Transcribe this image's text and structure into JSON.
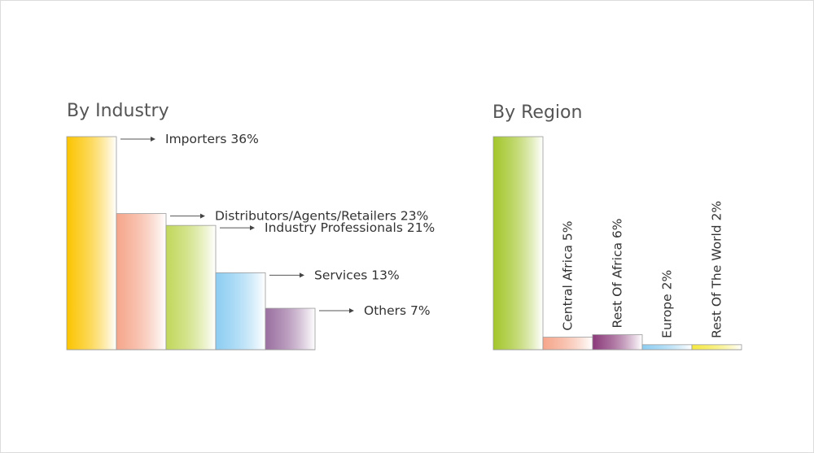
{
  "chart_data": [
    {
      "type": "bar",
      "title": "By Industry",
      "categories": [
        "Importers",
        "Distributors/Agents/Retailers",
        "Industry Professionals",
        "Services",
        "Others"
      ],
      "values": [
        36,
        23,
        21,
        13,
        7
      ],
      "labels": [
        "Importers 36%",
        "Distributors/Agents/Retailers 23%",
        "Industry Professionals  21%",
        "Services  13%",
        "Others 7%"
      ],
      "colors": [
        "#fbc400",
        "#f5a58a",
        "#c0d75a",
        "#8ccdf2",
        "#9a6fa0"
      ],
      "ylim": [
        0,
        36
      ],
      "grid": false,
      "legend": "none"
    },
    {
      "type": "bar",
      "title": "By Region",
      "categories": [
        "",
        "Central Africa",
        "Rest Of Africa",
        "Europe",
        "Rest Of The World"
      ],
      "values": [
        85,
        5,
        6,
        2,
        2
      ],
      "labels": [
        "",
        "Central Africa 5%",
        "Rest Of Africa  6%",
        "Europe 2%",
        "Rest Of The World 2%"
      ],
      "colors": [
        "#a3c62a",
        "#f5a58a",
        "#8b3a7a",
        "#8ccdf2",
        "#f5e840"
      ],
      "ylim": [
        0,
        85
      ],
      "grid": false,
      "legend": "none"
    }
  ]
}
